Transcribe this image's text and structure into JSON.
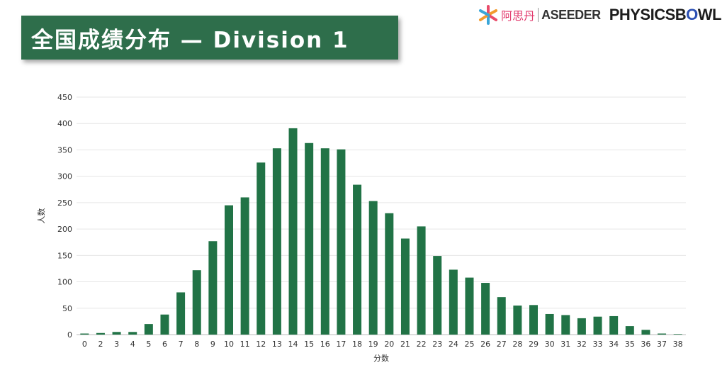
{
  "title": "全国成绩分布 — Division 1",
  "logos": {
    "aseeder_cn": "阿思丹",
    "aseeder_en": "ASEEDER",
    "physicsbowl_prefix": "PHYSICSB",
    "physicsbowl_o": "O",
    "physicsbowl_suffix": "WL"
  },
  "colors": {
    "banner": "#2e6e4b",
    "bar": "#217346",
    "grid": "#e6e6e6"
  },
  "chart_data": {
    "type": "bar",
    "xlabel": "分数",
    "ylabel": "人数",
    "ylim": [
      0,
      450
    ],
    "yticks": [
      0,
      50,
      100,
      150,
      200,
      250,
      300,
      350,
      400,
      450
    ],
    "grid": true,
    "legend": "none",
    "categories": [
      "0",
      "2",
      "3",
      "4",
      "5",
      "6",
      "7",
      "8",
      "9",
      "10",
      "11",
      "12",
      "13",
      "14",
      "15",
      "16",
      "17",
      "18",
      "19",
      "20",
      "21",
      "22",
      "23",
      "24",
      "25",
      "26",
      "27",
      "28",
      "29",
      "30",
      "31",
      "32",
      "33",
      "34",
      "35",
      "36",
      "37",
      "38"
    ],
    "values": [
      2,
      3,
      5,
      5,
      20,
      38,
      80,
      122,
      177,
      245,
      260,
      326,
      353,
      391,
      363,
      353,
      351,
      284,
      253,
      230,
      182,
      205,
      149,
      123,
      108,
      98,
      71,
      55,
      56,
      39,
      37,
      31,
      34,
      35,
      16,
      9,
      2,
      1
    ]
  }
}
